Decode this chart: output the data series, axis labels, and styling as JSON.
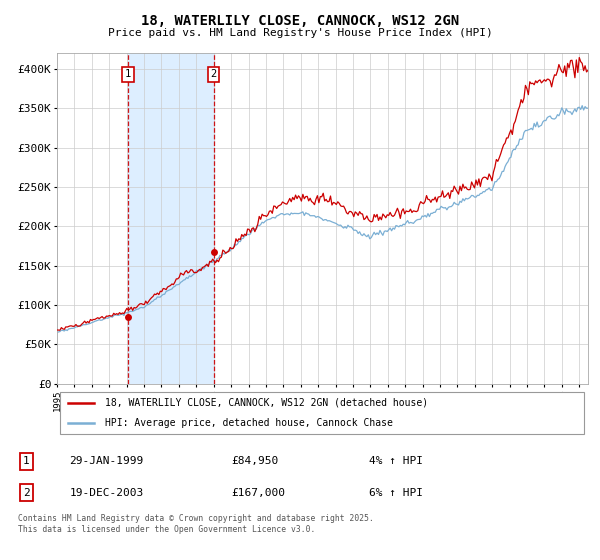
{
  "title": "18, WATERLILY CLOSE, CANNOCK, WS12 2GN",
  "subtitle": "Price paid vs. HM Land Registry's House Price Index (HPI)",
  "ylabel_ticks": [
    "£0",
    "£50K",
    "£100K",
    "£150K",
    "£200K",
    "£250K",
    "£300K",
    "£350K",
    "£400K"
  ],
  "ytick_values": [
    0,
    50000,
    100000,
    150000,
    200000,
    250000,
    300000,
    350000,
    400000
  ],
  "ylim": [
    0,
    420000
  ],
  "xlim_start": 1995,
  "xlim_end": 2025.5,
  "legend_line1": "18, WATERLILY CLOSE, CANNOCK, WS12 2GN (detached house)",
  "legend_line2": "HPI: Average price, detached house, Cannock Chase",
  "marker1_year": 1999.08,
  "marker1_value": 84950,
  "marker1_date": "29-JAN-1999",
  "marker1_price": "£84,950",
  "marker1_hpi": "4% ↑ HPI",
  "marker2_year": 2004.0,
  "marker2_value": 167000,
  "marker2_date": "19-DEC-2003",
  "marker2_price": "£167,000",
  "marker2_hpi": "6% ↑ HPI",
  "footnote": "Contains HM Land Registry data © Crown copyright and database right 2025.\nThis data is licensed under the Open Government Licence v3.0.",
  "line_color_red": "#cc0000",
  "line_color_blue": "#7bafd4",
  "shade_color": "#ddeeff",
  "marker_box_color": "#cc0000",
  "background_color": "#ffffff",
  "grid_color": "#cccccc"
}
